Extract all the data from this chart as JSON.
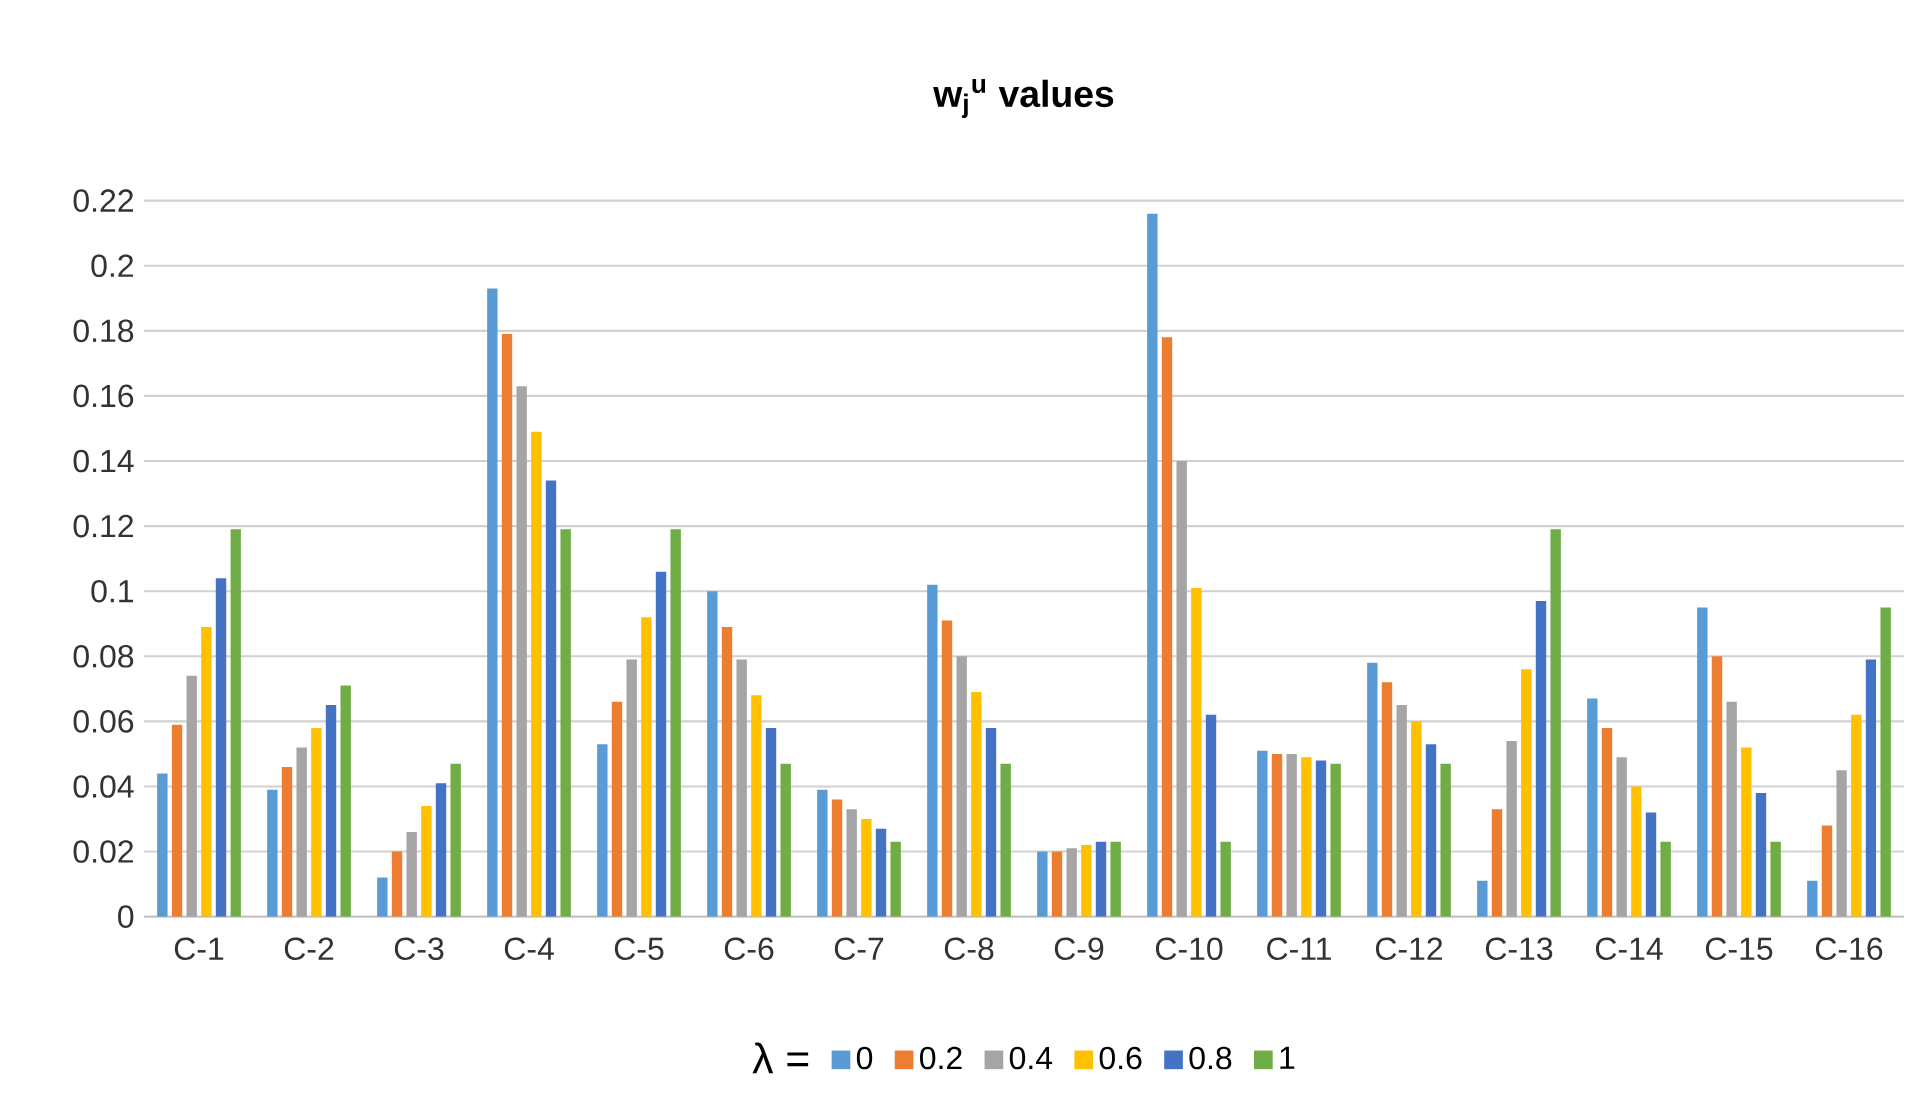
{
  "chart_data": {
    "type": "bar",
    "title": "w$_{j}$$^{u}$ values",
    "legend_title": "λ =",
    "categories": [
      "C-1",
      "C-2",
      "C-3",
      "C-4",
      "C-5",
      "C-6",
      "C-7",
      "C-8",
      "C-9",
      "C-10",
      "C-11",
      "C-12",
      "C-13",
      "C-14",
      "C-15",
      "C-16"
    ],
    "series": [
      {
        "name": "0",
        "color": "#5b9bd5",
        "values": [
          0.044,
          0.039,
          0.012,
          0.193,
          0.053,
          0.1,
          0.039,
          0.102,
          0.02,
          0.216,
          0.051,
          0.078,
          0.011,
          0.067,
          0.095,
          0.011
        ]
      },
      {
        "name": "0.2",
        "color": "#ed7d31",
        "values": [
          0.059,
          0.046,
          0.02,
          0.179,
          0.066,
          0.089,
          0.036,
          0.091,
          0.02,
          0.178,
          0.05,
          0.072,
          0.033,
          0.058,
          0.08,
          0.028
        ]
      },
      {
        "name": "0.4",
        "color": "#a5a5a5",
        "values": [
          0.074,
          0.052,
          0.026,
          0.163,
          0.079,
          0.079,
          0.033,
          0.08,
          0.021,
          0.14,
          0.05,
          0.065,
          0.054,
          0.049,
          0.066,
          0.045
        ]
      },
      {
        "name": "0.6",
        "color": "#ffc000",
        "values": [
          0.089,
          0.058,
          0.034,
          0.149,
          0.092,
          0.068,
          0.03,
          0.069,
          0.022,
          0.101,
          0.049,
          0.06,
          0.076,
          0.04,
          0.052,
          0.062
        ]
      },
      {
        "name": "0.8",
        "color": "#4472c4",
        "values": [
          0.104,
          0.065,
          0.041,
          0.134,
          0.106,
          0.058,
          0.027,
          0.058,
          0.023,
          0.062,
          0.048,
          0.053,
          0.097,
          0.032,
          0.038,
          0.079
        ]
      },
      {
        "name": "1",
        "color": "#70ad47",
        "values": [
          0.119,
          0.071,
          0.047,
          0.119,
          0.119,
          0.047,
          0.023,
          0.047,
          0.023,
          0.023,
          0.047,
          0.047,
          0.119,
          0.023,
          0.023,
          0.095
        ]
      }
    ],
    "ylim": [
      0,
      0.22
    ],
    "yticks": [
      0,
      0.02,
      0.04,
      0.06,
      0.08,
      0.1,
      0.12,
      0.14,
      0.16,
      0.18,
      0.2,
      0.22
    ],
    "grid": "y",
    "legend": "bottom"
  }
}
